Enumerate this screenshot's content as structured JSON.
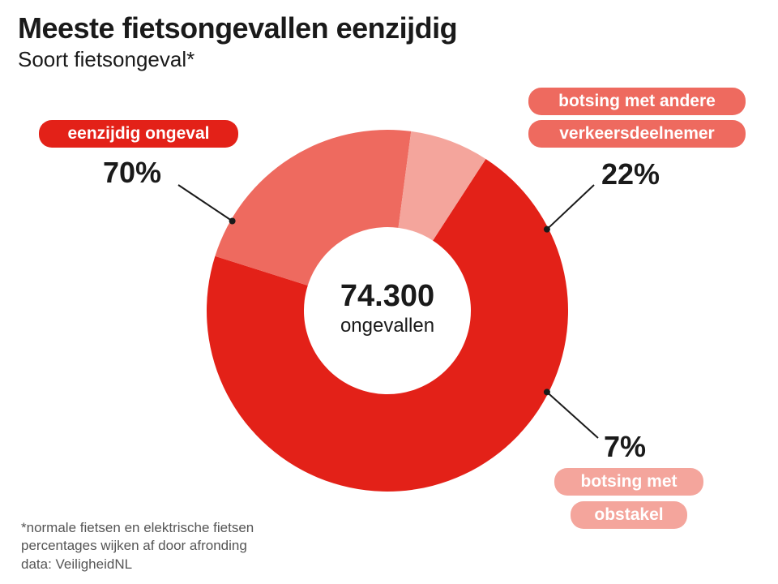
{
  "title": "Meeste fietsongevallen eenzijdig",
  "subtitle": "Soort fietsongeval*",
  "colors": {
    "eenzijdig": "#e32118",
    "botsing_verkeer": "#ee6a5f",
    "botsing_obstakel": "#f4a59c",
    "pill_eenzijdig": "#e32118",
    "pill_verkeer": "#ee6a5f",
    "pill_obstakel": "#f4a59c",
    "leader": "#1a1a1a"
  },
  "chart_data": {
    "type": "pie",
    "variant": "donut",
    "title": "Meeste fietsongevallen eenzijdig",
    "subtitle": "Soort fietsongeval*",
    "total_value": "74.300",
    "total_label": "ongevallen",
    "slices": [
      {
        "key": "eenzijdig",
        "label_lines": [
          "eenzijdig ongeval"
        ],
        "value": 70,
        "display": "70%"
      },
      {
        "key": "botsing_verkeer",
        "label_lines": [
          "botsing met andere",
          "verkeersdeelnemer"
        ],
        "value": 22,
        "display": "22%"
      },
      {
        "key": "botsing_obstakel",
        "label_lines": [
          "botsing met",
          "obstakel"
        ],
        "value": 7,
        "display": "7%"
      }
    ]
  },
  "footnotes": [
    "*normale fietsen en elektrische fietsen",
    "percentages wijken af door afronding",
    "data: VeiligheidNL"
  ]
}
